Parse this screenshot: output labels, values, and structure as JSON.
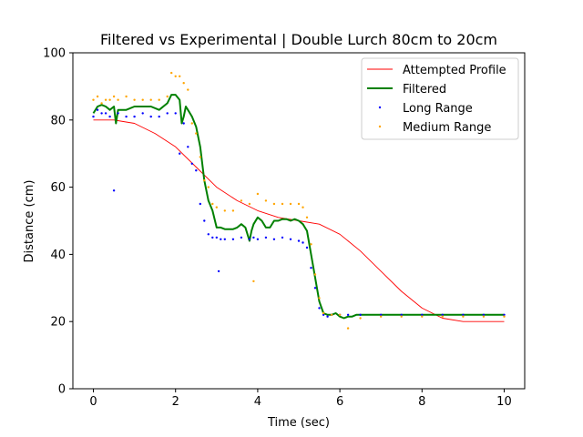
{
  "chart_data": {
    "type": "line",
    "title": "Filtered vs Experimental | Double Lurch 80cm to 20cm",
    "xlabel": "Time (sec)",
    "ylabel": "Distance (cm)",
    "xlim": [
      -0.5,
      10.5
    ],
    "ylim": [
      0,
      100
    ],
    "xticks": [
      0,
      2,
      4,
      6,
      8,
      10
    ],
    "yticks": [
      0,
      20,
      40,
      60,
      80,
      100
    ],
    "grid": false,
    "legend_position": "top-right",
    "series": [
      {
        "name": "Attempted Profile",
        "style": "line",
        "color": "#ff0000",
        "x": [
          0,
          0.5,
          1.0,
          1.5,
          2.0,
          2.5,
          3.0,
          3.5,
          4.0,
          4.5,
          5.0,
          5.5,
          6.0,
          6.5,
          7.0,
          7.5,
          8.0,
          8.5,
          9.0,
          9.5,
          10.0
        ],
        "y": [
          80,
          80,
          79,
          76,
          72,
          66,
          60,
          56,
          53,
          51,
          50,
          49,
          46,
          41,
          35,
          29,
          24,
          21,
          20,
          20,
          20
        ]
      },
      {
        "name": "Filtered",
        "style": "line",
        "color": "#008000",
        "x": [
          0,
          0.1,
          0.2,
          0.3,
          0.4,
          0.5,
          0.55,
          0.6,
          0.8,
          1.0,
          1.2,
          1.4,
          1.6,
          1.8,
          1.9,
          2.0,
          2.1,
          2.15,
          2.2,
          2.25,
          2.3,
          2.4,
          2.5,
          2.6,
          2.7,
          2.8,
          2.9,
          3.0,
          3.1,
          3.2,
          3.3,
          3.4,
          3.5,
          3.6,
          3.7,
          3.8,
          3.85,
          3.9,
          4.0,
          4.1,
          4.2,
          4.3,
          4.4,
          4.5,
          4.6,
          4.7,
          4.8,
          4.9,
          5.0,
          5.1,
          5.2,
          5.3,
          5.4,
          5.5,
          5.6,
          5.7,
          5.8,
          5.9,
          6.0,
          6.1,
          6.2,
          6.3,
          6.4,
          6.5,
          6.6,
          6.8,
          7.0,
          7.5,
          8.0,
          8.5,
          9.0,
          9.5,
          10.0
        ],
        "y": [
          82,
          84,
          84.5,
          84,
          83,
          84,
          79,
          83,
          83,
          84,
          84,
          84,
          83,
          85,
          87.5,
          87.5,
          86,
          79,
          81,
          84,
          83,
          81,
          78,
          72,
          62,
          56,
          53,
          48,
          48,
          47.5,
          47.5,
          47.5,
          48,
          49,
          48,
          44,
          47,
          49,
          51,
          50,
          48,
          48,
          50,
          50,
          50.5,
          50.5,
          50,
          50.5,
          50,
          49,
          47,
          40,
          33,
          26,
          22.5,
          22,
          22,
          22.5,
          21.5,
          21,
          21.5,
          21.5,
          22,
          22,
          22,
          22,
          22,
          22,
          22,
          22,
          22,
          22,
          22
        ]
      },
      {
        "name": "Long Range",
        "style": "scatter",
        "color": "#0000ff",
        "x": [
          0,
          0.1,
          0.2,
          0.3,
          0.4,
          0.5,
          0.6,
          0.8,
          1.0,
          1.2,
          1.4,
          1.6,
          1.8,
          2.0,
          2.1,
          2.2,
          2.3,
          2.4,
          2.5,
          2.6,
          2.7,
          2.8,
          2.9,
          3.0,
          3.05,
          3.1,
          3.2,
          3.4,
          3.6,
          3.8,
          3.9,
          4.0,
          4.2,
          4.4,
          4.6,
          4.8,
          5.0,
          5.1,
          5.2,
          5.3,
          5.4,
          5.5,
          5.6,
          5.7,
          5.8,
          6.0,
          6.2,
          6.5,
          7.0,
          7.5,
          8.0,
          8.5,
          9.0,
          9.5,
          10.0
        ],
        "y": [
          81,
          83,
          82,
          82,
          81,
          59,
          82,
          81,
          81,
          82,
          81,
          81,
          82,
          82,
          70,
          79,
          72,
          67,
          65,
          55,
          50,
          46,
          45,
          45,
          35,
          44.5,
          44.5,
          44.5,
          45,
          44.5,
          45,
          44.5,
          45,
          44.5,
          45,
          44.5,
          44,
          43.5,
          42,
          36,
          30,
          24,
          22,
          21.5,
          22,
          22,
          22,
          22,
          22,
          22,
          22,
          22,
          22,
          22,
          22
        ]
      },
      {
        "name": "Medium Range",
        "style": "scatter",
        "color": "#ffa500",
        "x": [
          0,
          0.1,
          0.2,
          0.3,
          0.4,
          0.5,
          0.6,
          0.8,
          1.0,
          1.2,
          1.4,
          1.6,
          1.8,
          1.9,
          2.0,
          2.1,
          2.2,
          2.3,
          2.4,
          2.5,
          2.6,
          2.7,
          2.8,
          2.9,
          3.0,
          3.2,
          3.4,
          3.6,
          3.8,
          3.9,
          4.0,
          4.2,
          4.4,
          4.6,
          4.8,
          5.0,
          5.1,
          5.2,
          5.3,
          5.4,
          5.5,
          5.6,
          5.8,
          6.0,
          6.2,
          6.5,
          7.0,
          7.5,
          8.0,
          8.5,
          9.0,
          9.5,
          10.0
        ],
        "y": [
          86,
          87,
          85,
          86,
          86,
          87,
          86,
          87,
          86,
          86,
          86,
          86,
          87,
          94,
          93,
          93,
          91,
          89,
          79,
          76,
          69,
          62,
          60,
          55,
          54,
          53,
          53,
          56,
          55,
          32,
          58,
          56,
          55,
          55,
          55,
          55,
          54,
          51,
          43,
          34,
          27,
          22.5,
          22,
          22,
          18,
          21,
          21.5,
          21.5,
          21.5,
          21.5,
          21.5,
          21.5,
          21.5
        ]
      }
    ]
  }
}
